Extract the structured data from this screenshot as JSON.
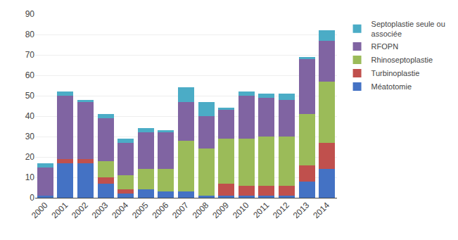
{
  "chart_data": {
    "type": "bar",
    "stacked": true,
    "categories": [
      "2000",
      "2001",
      "2002",
      "2003",
      "2004",
      "2005",
      "2006",
      "2007",
      "2008",
      "2009",
      "2010",
      "2011",
      "2012",
      "2013",
      "2014"
    ],
    "series": [
      {
        "name": "Méatotomie",
        "color": "#4472C4",
        "values": [
          1,
          17,
          17,
          7,
          2,
          4,
          3,
          3,
          1,
          1,
          1,
          1,
          1,
          8,
          14
        ]
      },
      {
        "name": "Turbinoplastie",
        "color": "#C0504D",
        "values": [
          0,
          2,
          2,
          3,
          2,
          0,
          0,
          0,
          0,
          6,
          5,
          5,
          5,
          8,
          13
        ]
      },
      {
        "name": "Rhinoseptoplastie",
        "color": "#9BBB59",
        "values": [
          0,
          0,
          0,
          8,
          7,
          10,
          11,
          25,
          23,
          22,
          23,
          24,
          24,
          25,
          30
        ]
      },
      {
        "name": "RFOPN",
        "color": "#8064A2",
        "values": [
          14,
          31,
          28,
          21,
          16,
          18,
          18,
          19,
          16,
          14,
          21,
          19,
          18,
          27,
          20
        ]
      },
      {
        "name": "Septoplastie seule ou\nassociée",
        "color": "#4BACC6",
        "values": [
          2,
          2,
          1,
          2,
          2,
          2,
          1,
          7,
          7,
          1,
          2,
          2,
          3,
          1,
          5
        ]
      }
    ],
    "ylim": [
      0,
      90
    ],
    "yticks": [
      0,
      10,
      20,
      30,
      40,
      50,
      60,
      70,
      80,
      90
    ],
    "grid": true,
    "legend": "upper right"
  }
}
